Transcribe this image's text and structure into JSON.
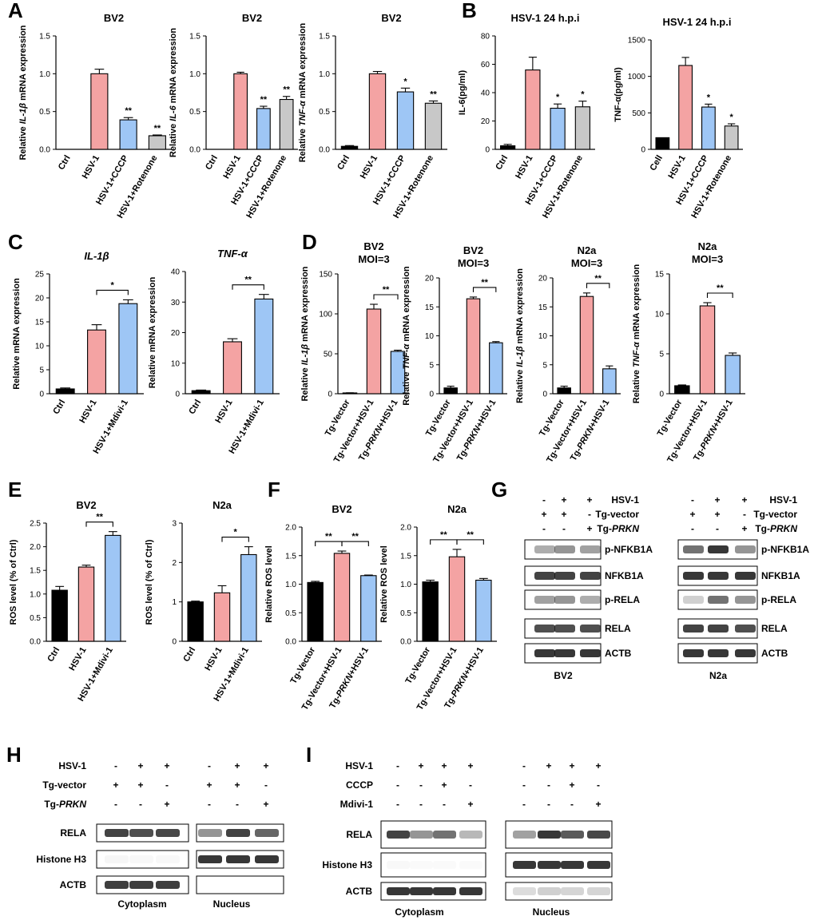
{
  "panels": [
    {
      "label": "A",
      "type": "bar",
      "title": "BV2",
      "ylabel": "Relative IL-1β mRNA expression",
      "ylim": [
        0,
        1.5
      ],
      "yticks": [
        0,
        0.5,
        1.0,
        1.5
      ],
      "ytick_labels": [
        "0.0",
        "0.5",
        "1.0",
        "1.5"
      ],
      "categories": [
        "Ctrl",
        "HSV-1",
        "HSV-1+CCCP",
        "HSV-1+Rotenone"
      ],
      "values": [
        0,
        1.0,
        0.39,
        0.18
      ],
      "errors": [
        0,
        0.06,
        0.03,
        0.01
      ],
      "colors": [
        "#000000",
        "#f4a3a3",
        "#9ec6f5",
        "#c8c8c8"
      ],
      "sig": [
        "",
        "",
        "**",
        "**"
      ],
      "brackets": []
    },
    {
      "label": "",
      "type": "bar",
      "title": "BV2",
      "ylabel": "Relative IL-6 mRNA expression",
      "ylim": [
        0,
        1.5
      ],
      "yticks": [
        0,
        0.5,
        1.0,
        1.5
      ],
      "ytick_labels": [
        "0.0",
        "0.5",
        "1.0",
        "1.5"
      ],
      "categories": [
        "Ctrl",
        "HSV-1",
        "HSV-1+CCCP",
        "HSV-1+Rotenone"
      ],
      "values": [
        0,
        1.0,
        0.54,
        0.66
      ],
      "errors": [
        0,
        0.02,
        0.03,
        0.04
      ],
      "colors": [
        "#000000",
        "#f4a3a3",
        "#9ec6f5",
        "#c8c8c8"
      ],
      "sig": [
        "",
        "",
        "**",
        "**"
      ],
      "brackets": []
    },
    {
      "label": "",
      "type": "bar",
      "title": "BV2",
      "ylabel": "Relative TNF-α mRNA expression",
      "ylim": [
        0,
        1.5
      ],
      "yticks": [
        0,
        0.5,
        1.0,
        1.5
      ],
      "ytick_labels": [
        "0.0",
        "0.5",
        "1.0",
        "1.5"
      ],
      "categories": [
        "Ctrl",
        "HSV-1",
        "HSV-1+CCCP",
        "HSV-1+Rotenone"
      ],
      "values": [
        0.04,
        1.0,
        0.76,
        0.61
      ],
      "errors": [
        0.01,
        0.03,
        0.05,
        0.03
      ],
      "colors": [
        "#000000",
        "#f4a3a3",
        "#9ec6f5",
        "#c8c8c8"
      ],
      "sig": [
        "",
        "",
        "*",
        "**"
      ],
      "brackets": []
    },
    {
      "label": "B",
      "type": "bar",
      "title": "HSV-1 24 h.p.i",
      "ylabel": "IL-6(pg/ml)",
      "ylim": [
        0,
        80
      ],
      "yticks": [
        0,
        20,
        40,
        60,
        80
      ],
      "ytick_labels": [
        "0",
        "20",
        "40",
        "60",
        "80"
      ],
      "categories": [
        "Ctrl",
        "HSV-1",
        "HSV-1+CCCP",
        "HSV-1+Rotenone"
      ],
      "values": [
        2.5,
        56,
        29,
        30
      ],
      "errors": [
        1,
        9,
        3,
        4
      ],
      "colors": [
        "#000000",
        "#f4a3a3",
        "#9ec6f5",
        "#c8c8c8"
      ],
      "sig": [
        "",
        "",
        "*",
        "*"
      ],
      "brackets": []
    },
    {
      "label": "",
      "type": "bar",
      "title": "HSV-1 24 h.p.i",
      "ylabel": "TNF-α(pg/ml)",
      "ylim": [
        0,
        1500
      ],
      "yticks": [
        0,
        500,
        1000,
        1500
      ],
      "ytick_labels": [
        "0",
        "500",
        "1000",
        "1500"
      ],
      "categories": [
        "Cell",
        "HSV-1",
        "HSV-1+CCCP",
        "HSV-1+Rotenone"
      ],
      "values": [
        160,
        1150,
        580,
        320
      ],
      "errors": [
        0,
        110,
        40,
        30
      ],
      "colors": [
        "#000000",
        "#f4a3a3",
        "#9ec6f5",
        "#c8c8c8"
      ],
      "sig": [
        "",
        "",
        "*",
        "*"
      ],
      "brackets": []
    },
    {
      "label": "C",
      "type": "bar",
      "title": "IL-1β",
      "ylabel": "Relative mRNA expression",
      "ylim": [
        0,
        25
      ],
      "yticks": [
        0,
        5,
        10,
        15,
        20,
        25
      ],
      "ytick_labels": [
        "0",
        "5",
        "10",
        "15",
        "20",
        "25"
      ],
      "categories": [
        "Ctrl",
        "HSV-1",
        "HSV-1+Mdivi-1"
      ],
      "values": [
        1,
        13.3,
        18.8
      ],
      "errors": [
        0.2,
        1.1,
        0.8
      ],
      "colors": [
        "#000000",
        "#f4a3a3",
        "#9ec6f5"
      ],
      "sig": [
        "",
        "",
        ""
      ],
      "brackets": [
        {
          "from": 1,
          "to": 2,
          "text": "*"
        }
      ]
    },
    {
      "label": "",
      "type": "bar",
      "title": "TNF-α",
      "ylabel": "Relative mRNA expression",
      "ylim": [
        0,
        40
      ],
      "yticks": [
        0,
        10,
        20,
        30,
        40
      ],
      "ytick_labels": [
        "0",
        "10",
        "20",
        "30",
        "40"
      ],
      "categories": [
        "Ctrl",
        "HSV-1",
        "HSV-1+Mdivi-1"
      ],
      "values": [
        1,
        17,
        31
      ],
      "errors": [
        0.2,
        1,
        1.5
      ],
      "colors": [
        "#000000",
        "#f4a3a3",
        "#9ec6f5"
      ],
      "sig": [
        "",
        "",
        ""
      ],
      "brackets": [
        {
          "from": 1,
          "to": 2,
          "text": "**"
        }
      ]
    },
    {
      "label": "D",
      "type": "bar",
      "title": "BV2",
      "title2": "MOI=3",
      "ylabel": "Relative IL-1β mRNA expression",
      "ylim": [
        0,
        150
      ],
      "yticks": [
        0,
        50,
        100,
        150
      ],
      "ytick_labels": [
        "0",
        "50",
        "100",
        "150"
      ],
      "categories": [
        "Tg-Vector",
        "Tg-Vector+HSV-1",
        "Tg-PRKN+HSV-1"
      ],
      "values": [
        1,
        106,
        53
      ],
      "errors": [
        0.2,
        6,
        1.5
      ],
      "colors": [
        "#000000",
        "#f4a3a3",
        "#9ec6f5"
      ],
      "sig": [
        "",
        "",
        ""
      ],
      "brackets": [
        {
          "from": 1,
          "to": 2,
          "text": "**"
        }
      ]
    },
    {
      "label": "",
      "type": "bar",
      "title": "BV2",
      "title2": "MOI=3",
      "ylabel": "Relative TNF-α mRNA expression",
      "ylim": [
        0,
        20
      ],
      "yticks": [
        0,
        5,
        10,
        15,
        20
      ],
      "ytick_labels": [
        "0",
        "5",
        "10",
        "15",
        "20"
      ],
      "categories": [
        "Tg-Vector",
        "Tg-Vector+HSV-1",
        "Tg-PRKN+HSV-1"
      ],
      "values": [
        1,
        16.4,
        8.8
      ],
      "errors": [
        0.3,
        0.3,
        0.2
      ],
      "colors": [
        "#000000",
        "#f4a3a3",
        "#9ec6f5"
      ],
      "sig": [
        "",
        "",
        ""
      ],
      "brackets": [
        {
          "from": 1,
          "to": 2,
          "text": "**"
        }
      ]
    },
    {
      "label": "",
      "type": "bar",
      "title": "N2a",
      "title2": "MOI=3",
      "ylabel": "Relative IL-1β mRNA expression",
      "ylim": [
        0,
        20
      ],
      "yticks": [
        0,
        5,
        10,
        15,
        20
      ],
      "ytick_labels": [
        "0",
        "5",
        "10",
        "15",
        "20"
      ],
      "categories": [
        "Tg-Vector",
        "Tg-Vector+HSV-1",
        "Tg-PRKN+HSV-1"
      ],
      "values": [
        1,
        16.8,
        4.3
      ],
      "errors": [
        0.3,
        0.6,
        0.5
      ],
      "colors": [
        "#000000",
        "#f4a3a3",
        "#9ec6f5"
      ],
      "sig": [
        "",
        "",
        ""
      ],
      "brackets": [
        {
          "from": 1,
          "to": 2,
          "text": "**"
        }
      ]
    },
    {
      "label": "",
      "type": "bar",
      "title": "N2a",
      "title2": "MOI=3",
      "ylabel": "Relative TNF-α mRNA expression",
      "ylim": [
        0,
        15
      ],
      "yticks": [
        0,
        5,
        10,
        15
      ],
      "ytick_labels": [
        "0",
        "5",
        "10",
        "15"
      ],
      "categories": [
        "Tg-Vector",
        "Tg-Vector+HSV-1",
        "Tg-PRKN+HSV-1"
      ],
      "values": [
        1,
        11,
        4.8
      ],
      "errors": [
        0.1,
        0.4,
        0.3
      ],
      "colors": [
        "#000000",
        "#f4a3a3",
        "#9ec6f5"
      ],
      "sig": [
        "",
        "",
        ""
      ],
      "brackets": [
        {
          "from": 1,
          "to": 2,
          "text": "**"
        }
      ]
    },
    {
      "label": "E",
      "type": "bar",
      "title": "BV2",
      "ylabel": "ROS level (% of Ctrl)",
      "ylim": [
        0,
        2.5
      ],
      "yticks": [
        0,
        0.5,
        1.0,
        1.5,
        2.0,
        2.5
      ],
      "ytick_labels": [
        "0.0",
        "0.5",
        "1.0",
        "1.5",
        "2.0",
        "2.5"
      ],
      "categories": [
        "Ctrl",
        "HSV-1",
        "HSV-1+Mdivi-1"
      ],
      "values": [
        1.08,
        1.57,
        2.24
      ],
      "errors": [
        0.08,
        0.04,
        0.08
      ],
      "colors": [
        "#000000",
        "#f4a3a3",
        "#9ec6f5"
      ],
      "sig": [
        "",
        "",
        ""
      ],
      "brackets": [
        {
          "from": 1,
          "to": 2,
          "text": "**"
        }
      ]
    },
    {
      "label": "",
      "type": "bar",
      "title": "N2a",
      "ylabel": "ROS level (% of Ctrl)",
      "ylim": [
        0,
        3
      ],
      "yticks": [
        0,
        1,
        2,
        3
      ],
      "ytick_labels": [
        "0",
        "1",
        "2",
        "3"
      ],
      "categories": [
        "Ctrl",
        "HSV-1",
        "HSV-1+Mdivi-1"
      ],
      "values": [
        1.0,
        1.23,
        2.2
      ],
      "errors": [
        0.02,
        0.18,
        0.2
      ],
      "colors": [
        "#000000",
        "#f4a3a3",
        "#9ec6f5"
      ],
      "sig": [
        "",
        "",
        ""
      ],
      "brackets": [
        {
          "from": 1,
          "to": 2,
          "text": "*"
        }
      ]
    },
    {
      "label": "F",
      "type": "bar",
      "title": "BV2",
      "ylabel": "Relative ROS level",
      "ylim": [
        0,
        2.0
      ],
      "yticks": [
        0,
        0.5,
        1.0,
        1.5,
        2.0
      ],
      "ytick_labels": [
        "0.0",
        "0.5",
        "1.0",
        "1.5",
        "2.0"
      ],
      "categories": [
        "Tg-Vector",
        "Tg-Vector+HSV-1",
        "Tg-PRKN+HSV-1"
      ],
      "values": [
        1.03,
        1.54,
        1.15
      ],
      "errors": [
        0.02,
        0.04,
        0.01
      ],
      "colors": [
        "#000000",
        "#f4a3a3",
        "#9ec6f5"
      ],
      "sig": [
        "",
        "",
        ""
      ],
      "brackets": [
        {
          "from": 0,
          "to": 1,
          "text": "**"
        },
        {
          "from": 1,
          "to": 2,
          "text": "**"
        }
      ]
    },
    {
      "label": "",
      "type": "bar",
      "title": "N2a",
      "ylabel": "Relative ROS level",
      "ylim": [
        0,
        2.0
      ],
      "yticks": [
        0,
        0.5,
        1.0,
        1.5,
        2.0
      ],
      "ytick_labels": [
        "0.0",
        "0.5",
        "1.0",
        "1.5",
        "2.0"
      ],
      "categories": [
        "Tg-Vector",
        "Tg-Vector+HSV-1",
        "Tg-PRKN+HSV-1"
      ],
      "values": [
        1.04,
        1.48,
        1.07
      ],
      "errors": [
        0.03,
        0.13,
        0.03
      ],
      "colors": [
        "#000000",
        "#f4a3a3",
        "#9ec6f5"
      ],
      "sig": [
        "",
        "",
        ""
      ],
      "brackets": [
        {
          "from": 0,
          "to": 1,
          "text": "**"
        },
        {
          "from": 1,
          "to": 2,
          "text": "**"
        }
      ]
    }
  ],
  "blotG": {
    "label": "G",
    "conditions": [
      {
        "name": "HSV-1",
        "values": [
          "-",
          "+",
          "+"
        ]
      },
      {
        "name": "Tg-vector",
        "values": [
          "+",
          "+",
          "-"
        ]
      },
      {
        "name": "Tg-PRKN",
        "values": [
          "-",
          "-",
          "+"
        ]
      }
    ],
    "bands": [
      "p-NFKB1A",
      "NFKB1A",
      "p-RELA",
      "RELA",
      "ACTB"
    ],
    "cells": [
      "BV2",
      "N2a"
    ]
  },
  "blotH": {
    "label": "H",
    "conditions": [
      {
        "name": "HSV-1",
        "values": [
          "-",
          "+",
          "+",
          "-",
          "+",
          "+"
        ]
      },
      {
        "name": "Tg-vector",
        "values": [
          "+",
          "+",
          "-",
          "+",
          "+",
          "-"
        ]
      },
      {
        "name": "Tg-PRKN",
        "values": [
          "-",
          "-",
          "+",
          "-",
          "-",
          "+"
        ]
      }
    ],
    "bands": [
      "RELA",
      "Histone H3",
      "ACTB"
    ],
    "fractions": [
      "Cytoplasm",
      "Nucleus"
    ]
  },
  "blotI": {
    "label": "I",
    "conditions": [
      {
        "name": "HSV-1",
        "values": [
          "-",
          "+",
          "+",
          "+",
          "-",
          "+",
          "+",
          "+"
        ]
      },
      {
        "name": "CCCP",
        "values": [
          "-",
          "-",
          "+",
          "-",
          "-",
          "-",
          "+",
          "-"
        ]
      },
      {
        "name": "Mdivi-1",
        "values": [
          "-",
          "-",
          "-",
          "+",
          "-",
          "-",
          "-",
          "+"
        ]
      }
    ],
    "bands": [
      "RELA",
      "Histone H3",
      "ACTB"
    ],
    "fractions": [
      "Cytoplasm",
      "Nucleus"
    ]
  }
}
